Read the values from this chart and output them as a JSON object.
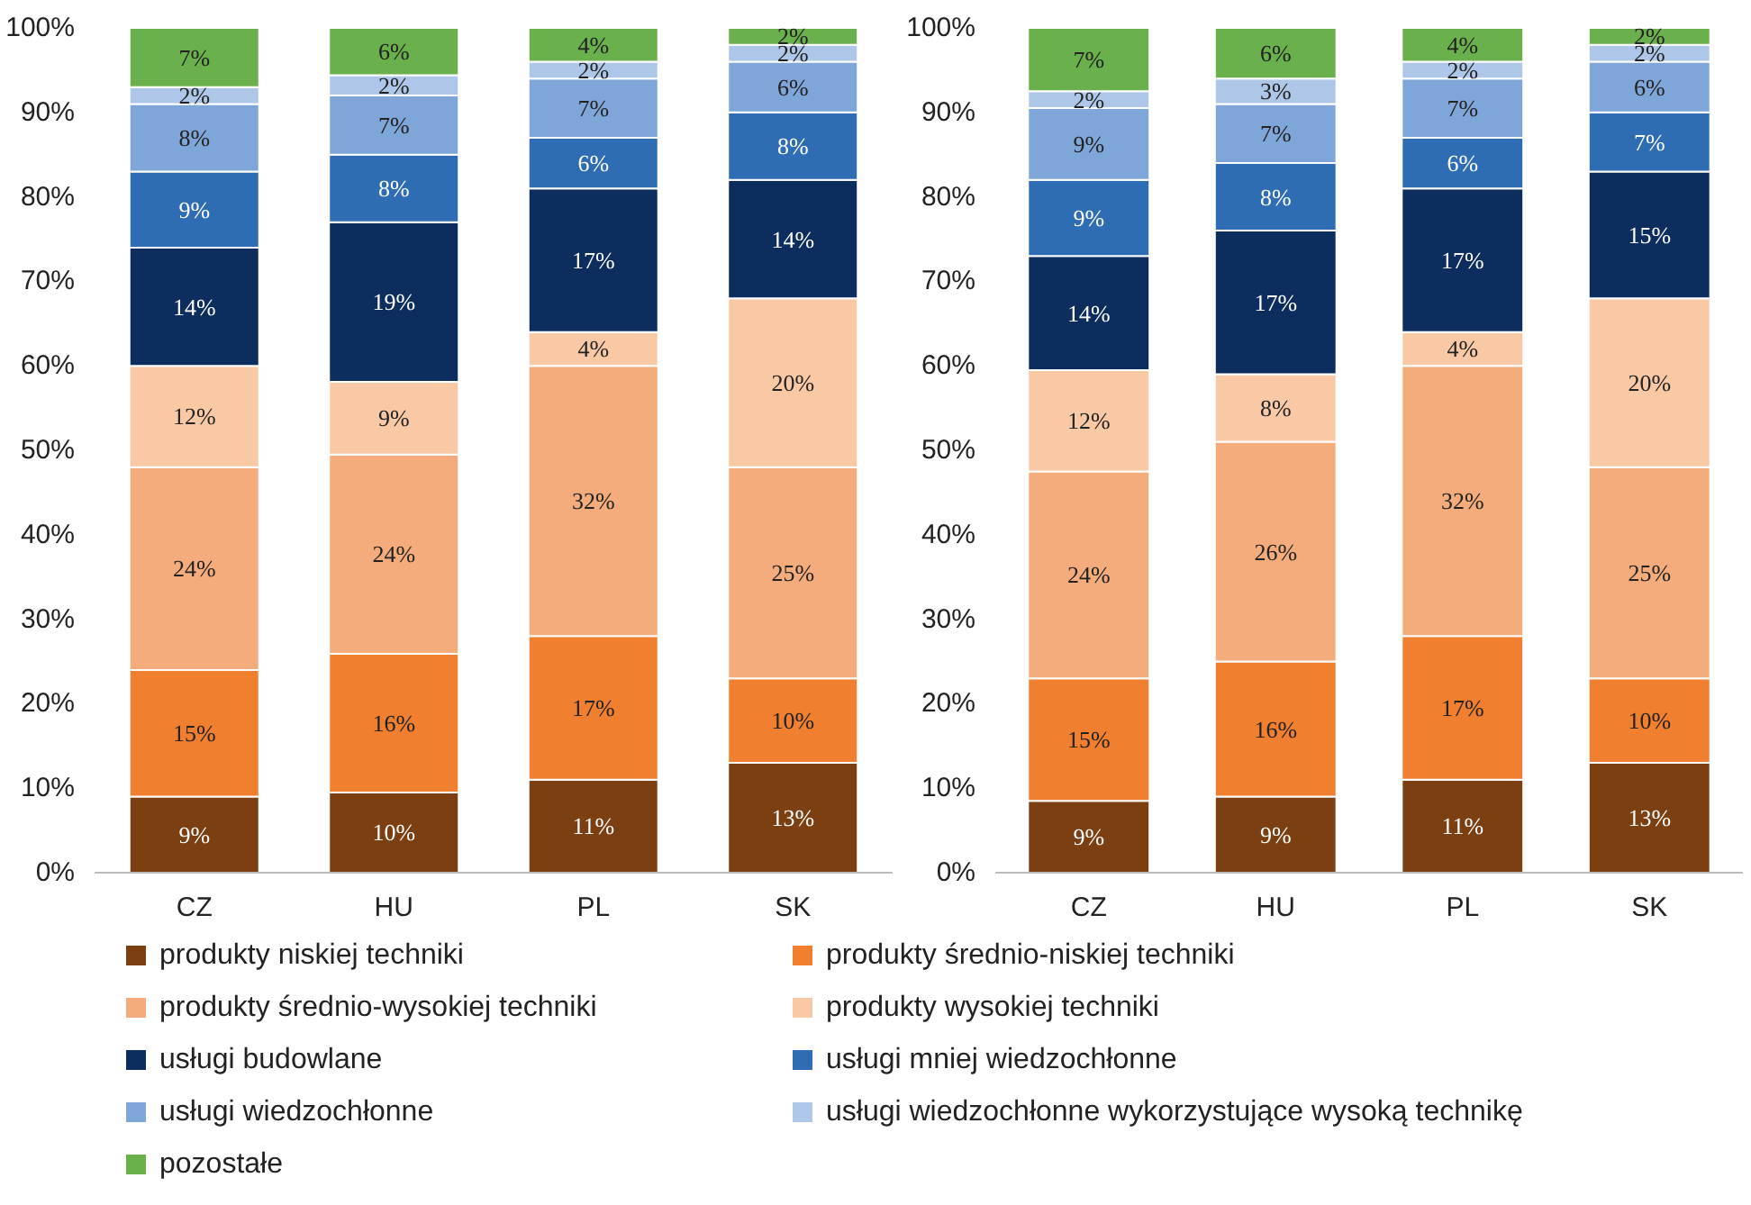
{
  "chart_data": [
    {
      "type": "bar",
      "stacked": true,
      "categories": [
        "CZ",
        "HU",
        "PL",
        "SK"
      ],
      "ylim": [
        0,
        100
      ],
      "yticks": [
        {
          "value": 0,
          "label": "0%"
        },
        {
          "value": 10,
          "label": "10%"
        },
        {
          "value": 20,
          "label": "20%"
        },
        {
          "value": 30,
          "label": "30%"
        },
        {
          "value": 40,
          "label": "40%"
        },
        {
          "value": 50,
          "label": "50%"
        },
        {
          "value": 60,
          "label": "60%"
        },
        {
          "value": 70,
          "label": "70%"
        },
        {
          "value": 80,
          "label": "80%"
        },
        {
          "value": 90,
          "label": "90%"
        },
        {
          "value": 100,
          "label": "100%"
        }
      ],
      "grid": false,
      "legend": "bottom",
      "series": [
        {
          "name": "produkty niskiej techniki",
          "color": "#7b3f12",
          "values": [
            9,
            9.5,
            11,
            13
          ],
          "value_labels": [
            "9%",
            "10%",
            "11%",
            "13%"
          ]
        },
        {
          "name": "produkty średnio-niskiej techniki",
          "color": "#f07f2f",
          "values": [
            15,
            16.4,
            17,
            10
          ],
          "value_labels": [
            "15%",
            "16%",
            "17%",
            "10%"
          ]
        },
        {
          "name": "produkty średnio-wysokiej techniki",
          "color": "#f4ac7c",
          "values": [
            24,
            23.6,
            32,
            25
          ],
          "value_labels": [
            "24%",
            "24%",
            "32%",
            "25%"
          ]
        },
        {
          "name": "produkty wysokiej techniki",
          "color": "#f9c9a6",
          "values": [
            12,
            8.6,
            4,
            20
          ],
          "value_labels": [
            "12%",
            "9%",
            "4%",
            "20%"
          ]
        },
        {
          "name": "usługi budowlane",
          "color": "#0c2d5e",
          "values": [
            14,
            18.9,
            17,
            14
          ],
          "value_labels": [
            "14%",
            "19%",
            "17%",
            "14%"
          ]
        },
        {
          "name": "usługi mniej wiedzochłonne",
          "color": "#2e6db4",
          "values": [
            9,
            8,
            6,
            8
          ],
          "value_labels": [
            "9%",
            "8%",
            "6%",
            "8%"
          ]
        },
        {
          "name": "usługi wiedzochłonne",
          "color": "#7fa6d8",
          "values": [
            8,
            7,
            7,
            6
          ],
          "value_labels": [
            "8%",
            "7%",
            "7%",
            "6%"
          ]
        },
        {
          "name": "usługi wiedzochłonne wykorzystujące wysoką technikę",
          "color": "#aec6e8",
          "values": [
            2,
            2.4,
            2,
            2
          ],
          "value_labels": [
            "2%",
            "2%",
            "2%",
            "2%"
          ]
        },
        {
          "name": "pozostałe",
          "color": "#6ab04c",
          "values": [
            7,
            5.6,
            4,
            2
          ],
          "value_labels": [
            "7%",
            "6%",
            "4%",
            "2%"
          ]
        }
      ]
    },
    {
      "type": "bar",
      "stacked": true,
      "categories": [
        "CZ",
        "HU",
        "PL",
        "SK"
      ],
      "ylim": [
        0,
        100
      ],
      "yticks": [
        {
          "value": 0,
          "label": "0%"
        },
        {
          "value": 10,
          "label": "10%"
        },
        {
          "value": 20,
          "label": "20%"
        },
        {
          "value": 30,
          "label": "30%"
        },
        {
          "value": 40,
          "label": "40%"
        },
        {
          "value": 50,
          "label": "50%"
        },
        {
          "value": 60,
          "label": "60%"
        },
        {
          "value": 70,
          "label": "70%"
        },
        {
          "value": 80,
          "label": "80%"
        },
        {
          "value": 90,
          "label": "90%"
        },
        {
          "value": 100,
          "label": "100%"
        }
      ],
      "grid": false,
      "series": [
        {
          "color": "#7b3f12",
          "values": [
            8.5,
            9,
            11,
            13
          ],
          "value_labels": [
            "9%",
            "9%",
            "11%",
            "13%"
          ]
        },
        {
          "color": "#f07f2f",
          "values": [
            14.5,
            16,
            17,
            10
          ],
          "value_labels": [
            "15%",
            "16%",
            "17%",
            "10%"
          ]
        },
        {
          "color": "#f4ac7c",
          "values": [
            24.5,
            26,
            32,
            25
          ],
          "value_labels": [
            "24%",
            "26%",
            "32%",
            "25%"
          ]
        },
        {
          "color": "#f9c9a6",
          "values": [
            12,
            8,
            4,
            20
          ],
          "value_labels": [
            "12%",
            "8%",
            "4%",
            "20%"
          ]
        },
        {
          "color": "#0c2d5e",
          "values": [
            13.5,
            17,
            17,
            15
          ],
          "value_labels": [
            "14%",
            "17%",
            "17%",
            "15%"
          ]
        },
        {
          "color": "#2e6db4",
          "values": [
            9,
            8,
            6,
            7
          ],
          "value_labels": [
            "9%",
            "8%",
            "6%",
            "7%"
          ]
        },
        {
          "color": "#7fa6d8",
          "values": [
            8.5,
            7,
            7,
            6
          ],
          "value_labels": [
            "9%",
            "7%",
            "7%",
            "6%"
          ]
        },
        {
          "color": "#aec6e8",
          "values": [
            2,
            3,
            2,
            2
          ],
          "value_labels": [
            "2%",
            "3%",
            "2%",
            "2%"
          ]
        },
        {
          "color": "#6ab04c",
          "values": [
            7.5,
            6,
            4,
            2
          ],
          "value_labels": [
            "7%",
            "6%",
            "4%",
            "2%"
          ]
        }
      ]
    }
  ]
}
